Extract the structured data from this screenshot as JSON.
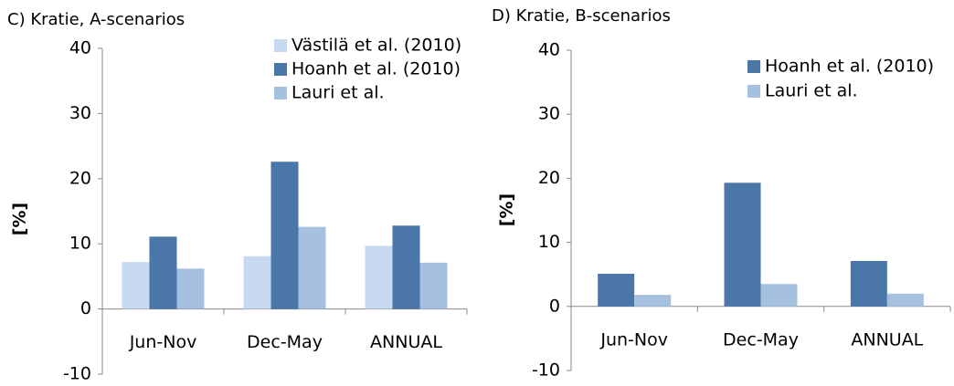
{
  "chart_data": [
    {
      "type": "bar",
      "title": "C) Kratie, A-scenarios",
      "y_label": "[%]",
      "categories": [
        "Jun-Nov",
        "Dec-May",
        "ANNUAL"
      ],
      "series": [
        {
          "name": "Västilä et al. (2010)",
          "color": "#c6d9f1",
          "values": [
            7.2,
            8.1,
            9.7
          ]
        },
        {
          "name": "Hoanh et al. (2010)",
          "color": "#4a76a8",
          "values": [
            11.1,
            22.6,
            12.8
          ]
        },
        {
          "name": "Lauri et al.",
          "color": "#a6c0e0",
          "values": [
            6.2,
            12.6,
            7.1
          ]
        }
      ],
      "ylim": [
        -10,
        40
      ],
      "yticks": [
        -10,
        0,
        10,
        20,
        30,
        40
      ],
      "grid": false
    },
    {
      "type": "bar",
      "title": "D) Kratie, B-scenarios",
      "y_label": "[%]",
      "categories": [
        "Jun-Nov",
        "Dec-May",
        "ANNUAL"
      ],
      "series": [
        {
          "name": "Hoanh et al. (2010)",
          "color": "#4a76a8",
          "values": [
            5.1,
            19.3,
            7.1
          ]
        },
        {
          "name": "Lauri et al.",
          "color": "#a6c0e0",
          "values": [
            1.8,
            3.5,
            2.0
          ]
        }
      ],
      "ylim": [
        -10,
        40
      ],
      "yticks": [
        -10,
        0,
        10,
        20,
        30,
        40
      ],
      "grid": false
    }
  ]
}
